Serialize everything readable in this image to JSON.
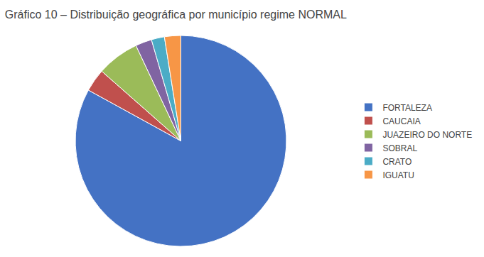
{
  "chart_data": {
    "type": "pie",
    "title": "Gráfico 10 – Distribuição geográfica por município regime NORMAL",
    "categories": [
      "FORTALEZA",
      "CAUCAIA",
      "JUAZEIRO DO NORTE",
      "SOBRAL",
      "CRATO",
      "IGUATU"
    ],
    "values": [
      83.0,
      3.5,
      6.5,
      2.5,
      2.0,
      2.5
    ],
    "colors": [
      "#4472C4",
      "#C0504D",
      "#9BBB59",
      "#8064A2",
      "#4BACC6",
      "#F79646"
    ],
    "legend": "right"
  }
}
